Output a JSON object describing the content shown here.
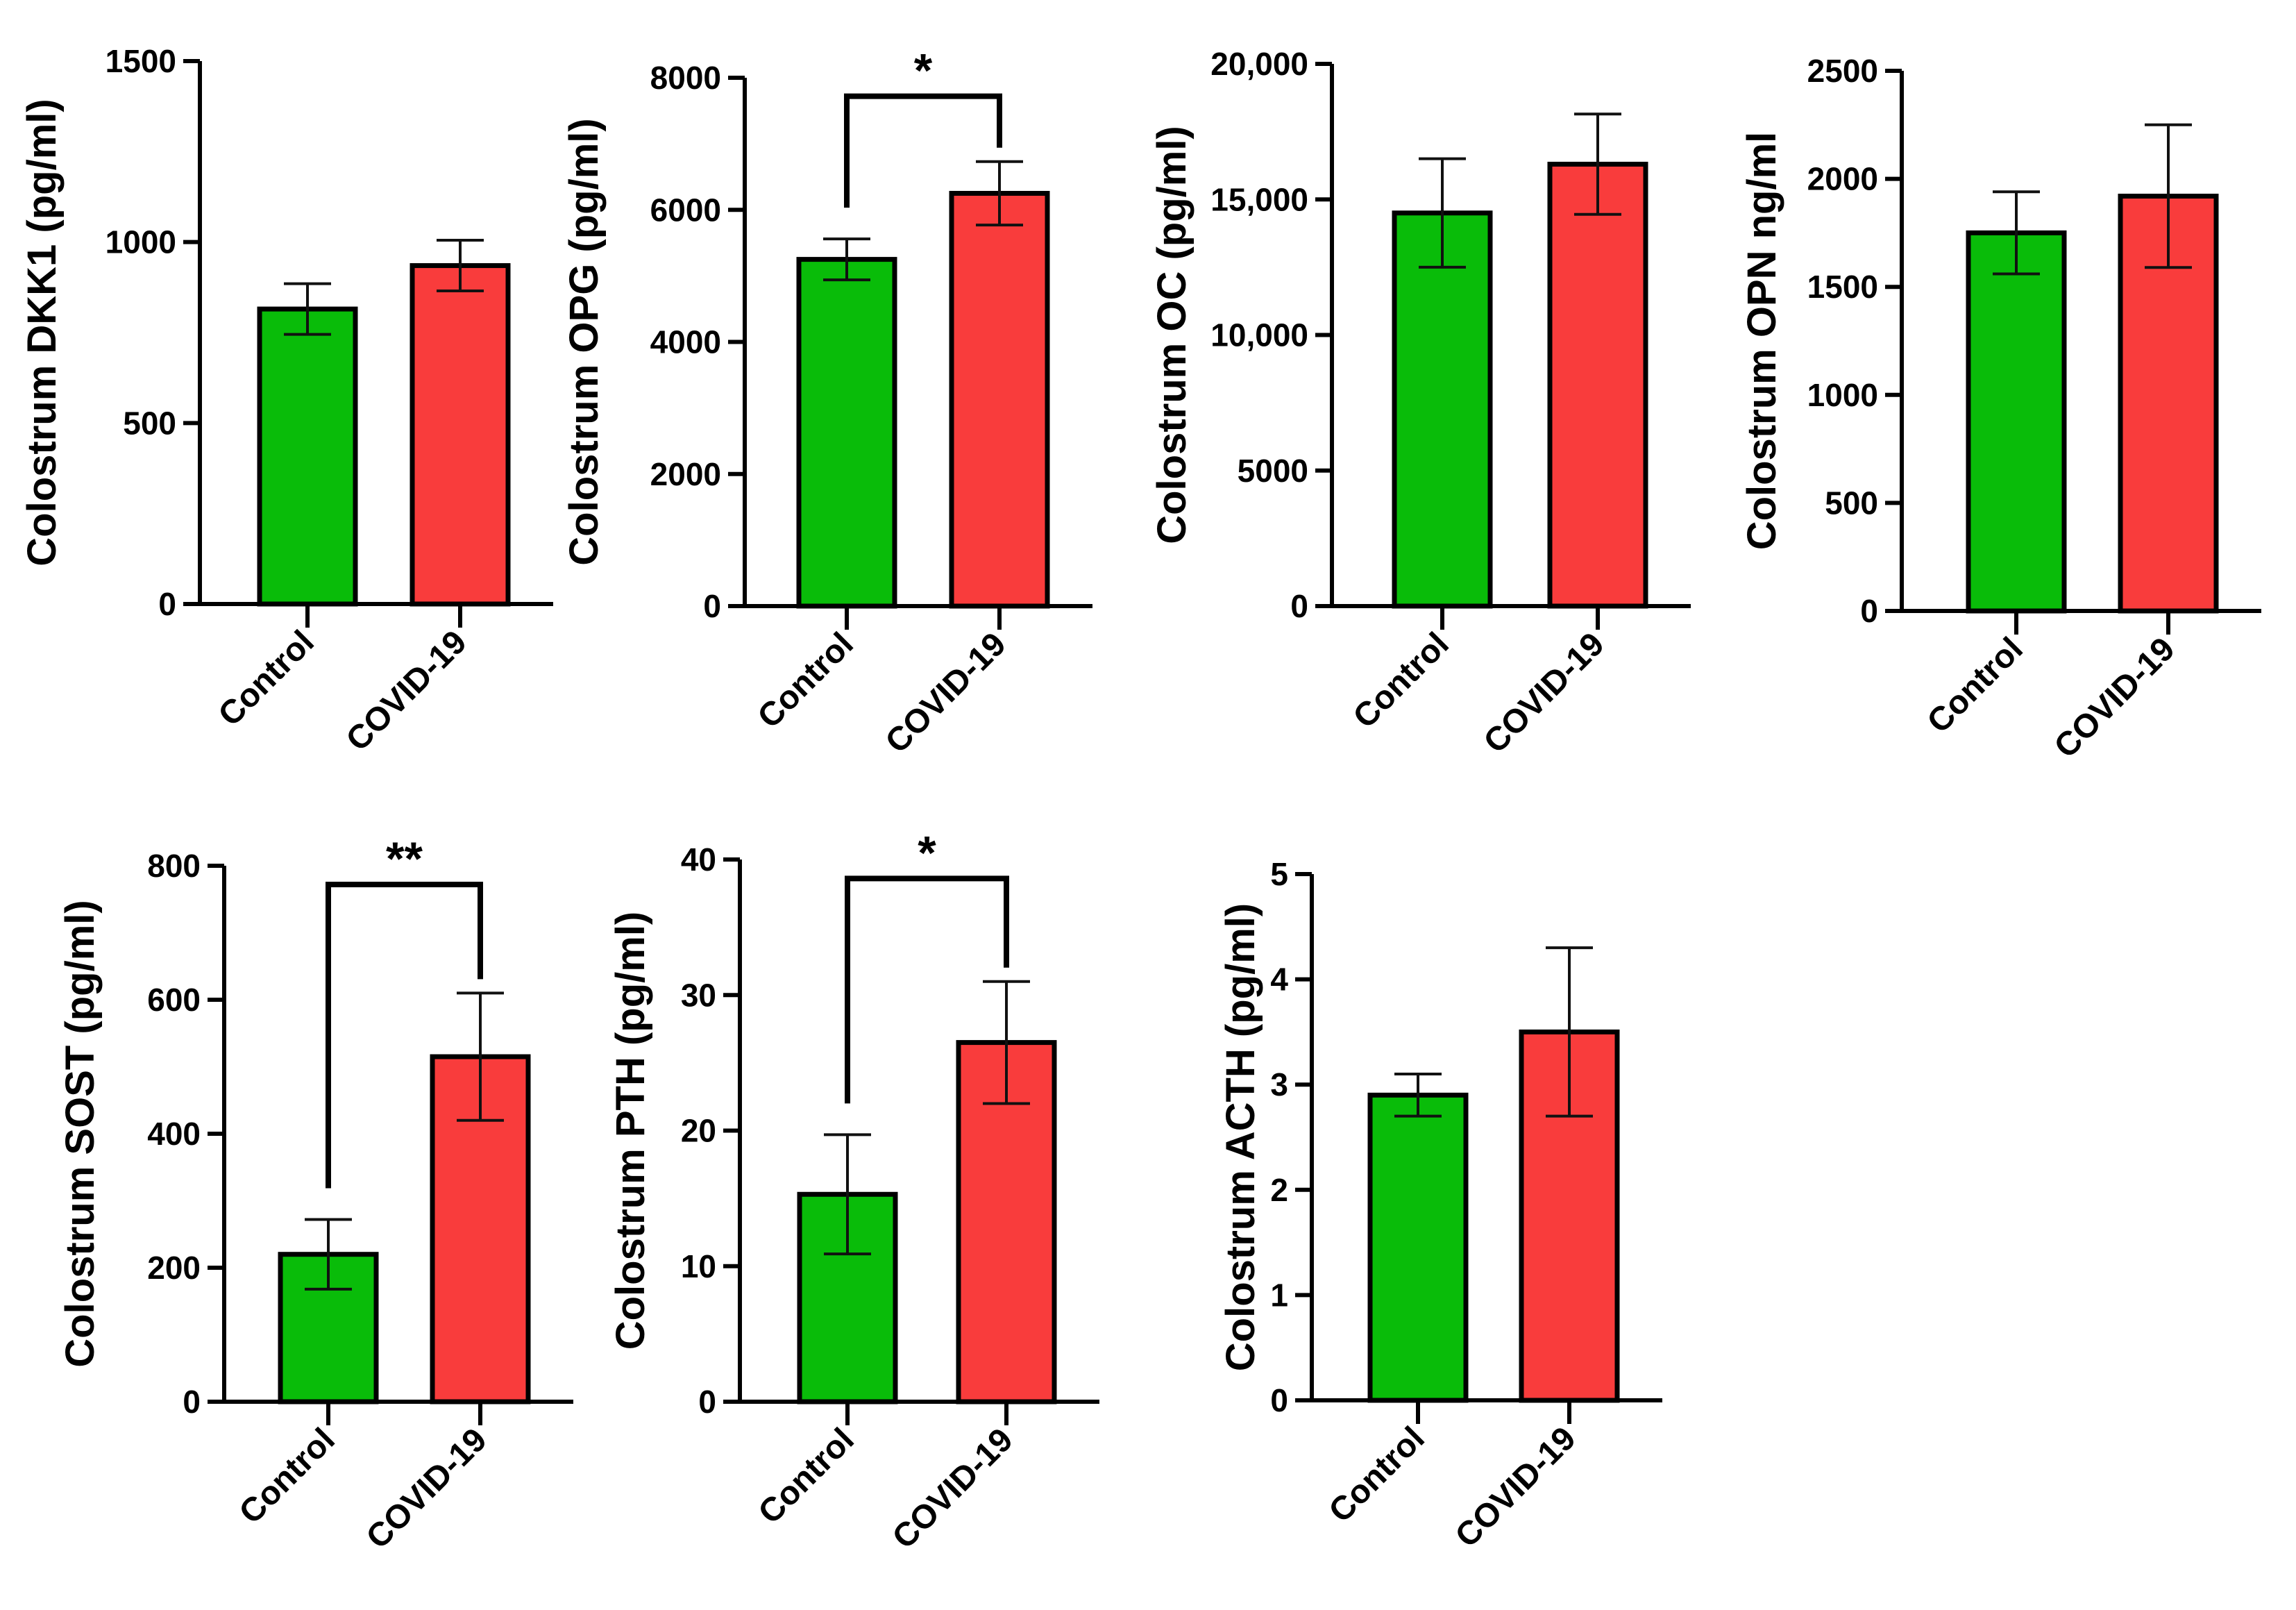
{
  "colors": {
    "control": "#09BC09",
    "covid": "#F93C3C",
    "axis": "#000000"
  },
  "chart_data": [
    {
      "id": "dkk1",
      "type": "bar",
      "ylabel": "Colostrum DKK1 (pg/ml)",
      "categories": [
        "Control",
        "COVID-19"
      ],
      "values": [
        815,
        935
      ],
      "errors": [
        70,
        70
      ],
      "ylim": [
        0,
        1500
      ],
      "yticks": [
        0,
        500,
        1000,
        1500
      ],
      "ytick_labels": [
        "0",
        "500",
        "1000",
        "1500"
      ],
      "significance": null
    },
    {
      "id": "opg",
      "type": "bar",
      "ylabel": "Colostrum OPG (pg/ml)",
      "categories": [
        "Control",
        "COVID-19"
      ],
      "values": [
        5250,
        6250
      ],
      "errors": [
        310,
        480
      ],
      "ylim": [
        0,
        8000
      ],
      "yticks": [
        0,
        2000,
        4000,
        6000,
        8000
      ],
      "ytick_labels": [
        "0",
        "2000",
        "4000",
        "6000",
        "8000"
      ],
      "significance": "*"
    },
    {
      "id": "oc",
      "type": "bar",
      "ylabel": "Colostrum OC (pg/ml)",
      "categories": [
        "Control",
        "COVID-19"
      ],
      "values": [
        14500,
        16300
      ],
      "errors": [
        2000,
        1850
      ],
      "ylim": [
        0,
        20000
      ],
      "yticks": [
        0,
        5000,
        10000,
        15000,
        20000
      ],
      "ytick_labels": [
        "0",
        "5000",
        "10,000",
        "15,000",
        "20,000"
      ],
      "significance": null
    },
    {
      "id": "opn",
      "type": "bar",
      "ylabel": "Colostrum OPN ng/ml",
      "categories": [
        "Control",
        "COVID-19"
      ],
      "values": [
        1750,
        1920
      ],
      "errors": [
        190,
        330
      ],
      "ylim": [
        0,
        2500
      ],
      "yticks": [
        0,
        500,
        1000,
        1500,
        2000,
        2500
      ],
      "ytick_labels": [
        "0",
        "500",
        "1000",
        "1500",
        "2000",
        "2500"
      ],
      "significance": null
    },
    {
      "id": "sost",
      "type": "bar",
      "ylabel": "Colostrum SOST (pg/ml)",
      "categories": [
        "Control",
        "COVID-19"
      ],
      "values": [
        220,
        515
      ],
      "errors": [
        52,
        95
      ],
      "ylim": [
        0,
        800
      ],
      "yticks": [
        0,
        200,
        400,
        600,
        800
      ],
      "ytick_labels": [
        "0",
        "200",
        "400",
        "600",
        "800"
      ],
      "significance": "**"
    },
    {
      "id": "pth",
      "type": "bar",
      "ylabel": "Colostrum PTH (pg/ml)",
      "categories": [
        "Control",
        "COVID-19"
      ],
      "values": [
        15.3,
        26.5
      ],
      "errors": [
        4.4,
        4.5
      ],
      "ylim": [
        0,
        40
      ],
      "yticks": [
        0,
        10,
        20,
        30,
        40
      ],
      "ytick_labels": [
        "0",
        "10",
        "20",
        "30",
        "40"
      ],
      "significance": "*"
    },
    {
      "id": "acth",
      "type": "bar",
      "ylabel": "Colostrum ACTH (pg/ml)",
      "categories": [
        "Control",
        "COVID-19"
      ],
      "values": [
        2.9,
        3.5
      ],
      "errors": [
        0.2,
        0.8
      ],
      "ylim": [
        0,
        5
      ],
      "yticks": [
        0,
        1,
        2,
        3,
        4,
        5
      ],
      "ytick_labels": [
        "0",
        "1",
        "2",
        "3",
        "4",
        "5"
      ],
      "significance": null
    }
  ]
}
